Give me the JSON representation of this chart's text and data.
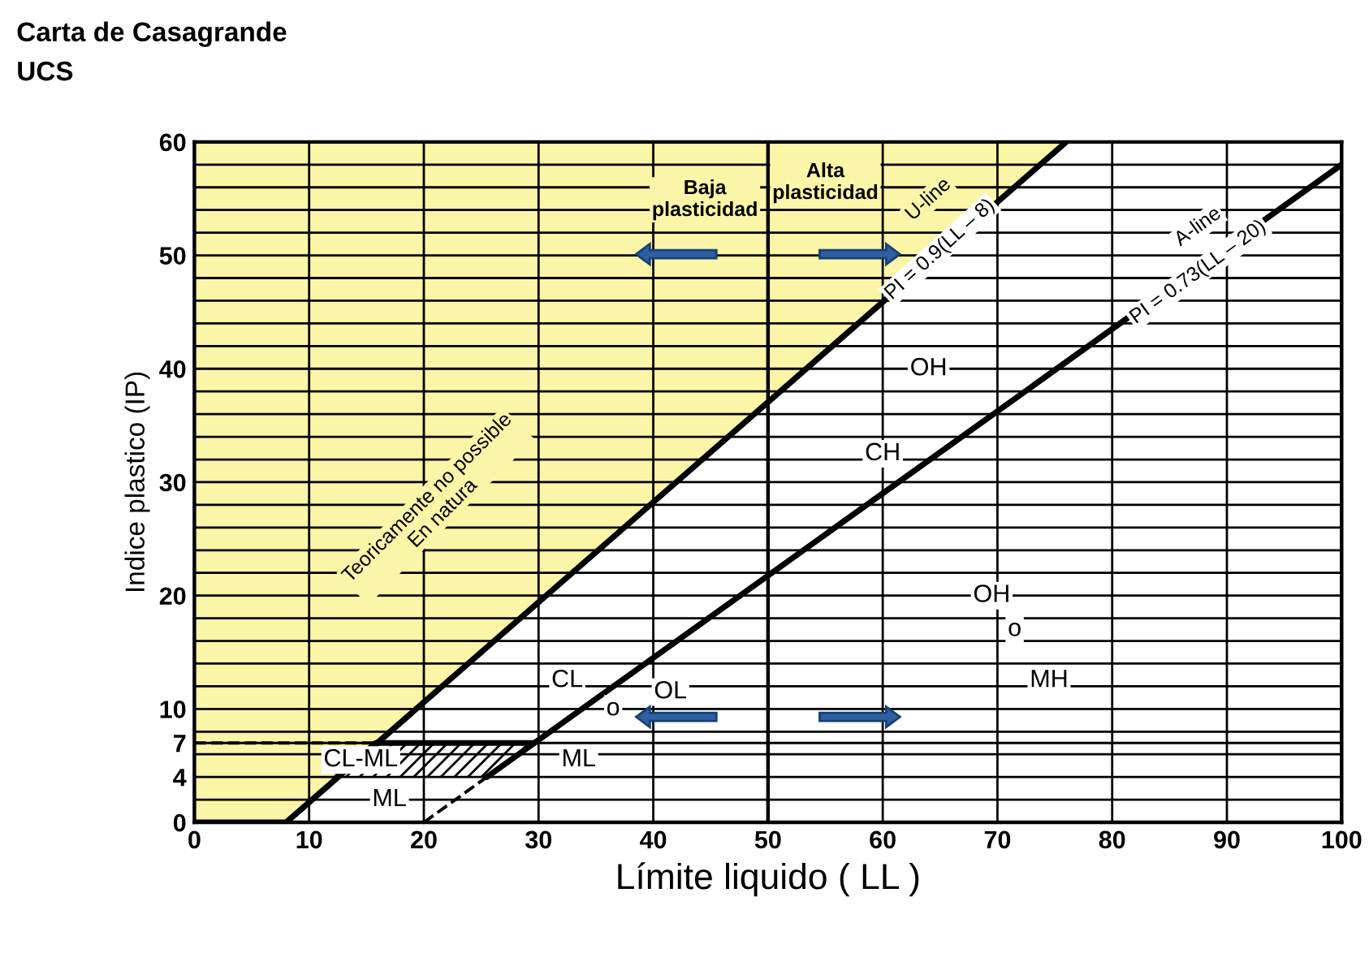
{
  "chart_data": {
    "type": "line",
    "title": "Carta de Casagrande",
    "subtitle": "UCS",
    "xlabel": "Límite liquido ( LL )",
    "ylabel": "Indice plastico (IP)",
    "series": [
      {
        "color": "#000000",
        "x": [
          0,
          8,
          76
        ],
        "values": [
          0,
          0,
          60
        ],
        "lower": [
          0,
          0,
          60
        ],
        "upper": [
          60,
          60,
          60
        ]
      },
      {
        "color": "#000000",
        "x": [
          25.5,
          100
        ],
        "values": [
          4,
          58
        ]
      },
      {
        "color": "#000000",
        "line_style": "dashed",
        "x": [
          20,
          25.5
        ],
        "values": [
          0,
          4
        ]
      },
      {
        "color": "#000000",
        "line_style": "dashed",
        "x": [
          0,
          15.8
        ],
        "values": [
          7,
          7
        ]
      },
      {
        "color": "#000000",
        "x": [
          12.4,
          15.8,
          25.5,
          29.6
        ],
        "values": [
          4,
          7,
          7,
          7
        ],
        "lower": [
          4,
          4,
          4,
          7
        ],
        "upper": [
          4,
          7,
          7,
          7
        ]
      }
    ],
    "ref_lines": [
      {
        "axis": "x",
        "value": 50,
        "color": "#000000"
      }
    ],
    "annotations": [
      "Baja\nplasticidad",
      "Alta\nplasticidad",
      "U-line",
      {
        "text": "PI = 0.9(LL – 8)",
        "x": 65,
        "y": 50.5
      },
      "A-line",
      {
        "text": "PI = 0.73(LL – 20)",
        "x": 87.5,
        "y": 48.5
      },
      {
        "text": "OH",
        "x": 64,
        "y": 40
      },
      {
        "text": "CH",
        "x": 60,
        "y": 32.5
      },
      {
        "text": "OH",
        "x": 69.5,
        "y": 20
      },
      {
        "text": "o",
        "x": 71.5,
        "y": 17
      },
      {
        "text": "MH",
        "x": 74.5,
        "y": 12.5
      },
      {
        "text": "CL",
        "x": 32.5,
        "y": 12.5
      },
      {
        "text": "o",
        "x": 36.5,
        "y": 10
      },
      {
        "text": "OL",
        "x": 41.5,
        "y": 11.5
      },
      {
        "text": "ML",
        "x": 33.5,
        "y": 5.5
      },
      {
        "text": "CL-ML",
        "x": 14.5,
        "y": 5.5
      },
      {
        "text": "ML",
        "x": 17,
        "y": 2
      },
      "Teoricamente no possible\nEn natura"
    ],
    "xlim": [
      0,
      100
    ],
    "ylim": [
      0,
      60
    ],
    "xticks": [
      0,
      10,
      20,
      30,
      40,
      50,
      60,
      70,
      80,
      90,
      100
    ],
    "yticks": [
      0,
      {
        "value": 2,
        "label": null
      },
      4,
      {
        "value": 6,
        "label": null
      },
      7,
      {
        "value": 8,
        "label": null
      },
      10,
      {
        "value": 12,
        "label": null
      },
      {
        "value": 14,
        "label": null
      },
      {
        "value": 16,
        "label": null
      },
      {
        "value": 18,
        "label": null
      },
      20,
      {
        "value": 22,
        "label": null
      },
      {
        "value": 24,
        "label": null
      },
      {
        "value": 26,
        "label": null
      },
      {
        "value": 28,
        "label": null
      },
      30,
      {
        "value": 32,
        "label": null
      },
      {
        "value": 34,
        "label": null
      },
      {
        "value": 36,
        "label": null
      },
      {
        "value": 38,
        "label": null
      },
      40,
      {
        "value": 42,
        "label": null
      },
      {
        "value": 44,
        "label": null
      },
      {
        "value": 46,
        "label": null
      },
      {
        "value": 48,
        "label": null
      },
      50,
      {
        "value": 52,
        "label": null
      },
      {
        "value": 54,
        "label": null
      },
      {
        "value": 56,
        "label": null
      },
      {
        "value": 58,
        "label": null
      },
      60
    ],
    "grid": true
  }
}
